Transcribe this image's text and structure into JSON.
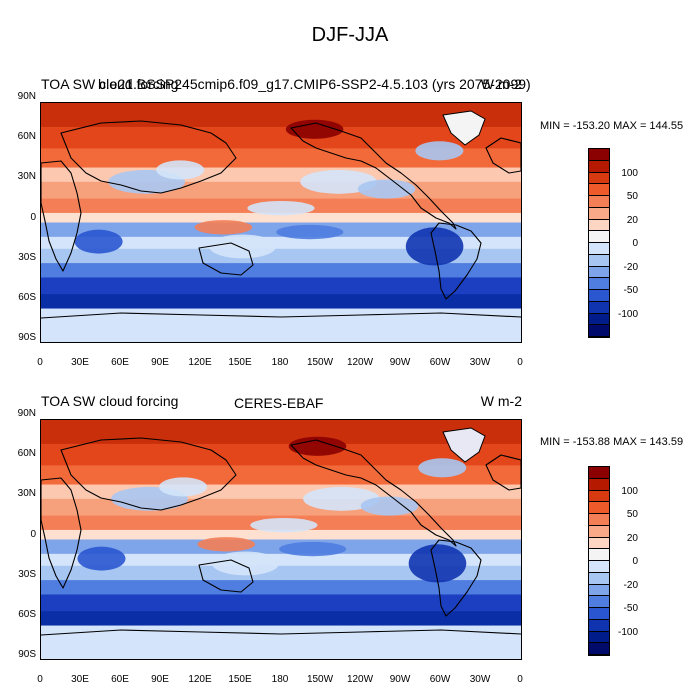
{
  "title": "DJF-JJA",
  "panels": [
    {
      "left_title": "TOA SW cloud forcing",
      "overlap_title": "b.e21.BSSP245cmip6.f09_g17.CMIP6-SSP2-4.5.103 (yrs 2075-2099)",
      "center_title": "",
      "units": "W m-2",
      "stats": "MIN = -153.20 MAX = 144.55"
    },
    {
      "left_title": "TOA SW cloud forcing",
      "overlap_title": "",
      "center_title": "CERES-EBAF",
      "units": "W m-2",
      "stats": "MIN = -153.88 MAX = 143.59"
    }
  ],
  "lat_ticks": [
    "90N",
    "60N",
    "30N",
    "0",
    "30S",
    "60S",
    "90S"
  ],
  "lon_ticks": [
    "0",
    "30E",
    "60E",
    "90E",
    "120E",
    "150E",
    "180",
    "150W",
    "120W",
    "90W",
    "60W",
    "30W",
    "0"
  ],
  "colorbar": {
    "labels": [
      "100",
      "50",
      "20",
      "0",
      "-20",
      "-50",
      "-100"
    ],
    "colors": [
      "#8b0000",
      "#b51a00",
      "#d73a10",
      "#ef5a2a",
      "#f47e55",
      "#f9a888",
      "#fcd6c2",
      "#f4f4f4",
      "#d4e4fa",
      "#a8c6f2",
      "#7ea4ea",
      "#4f7de0",
      "#2a56d0",
      "#1034b0",
      "#001c8a",
      "#000a6a"
    ]
  }
}
